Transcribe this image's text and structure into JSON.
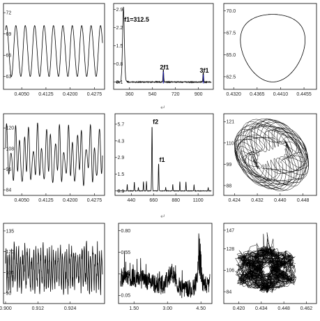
{
  "figure": {
    "separator_glyph": "↵"
  },
  "chart_data": [
    {
      "id": "r1c1",
      "type": "line",
      "kind": "periodic",
      "x_ticks": [
        "0.4050",
        "0.4125",
        "0.4200",
        "0.4275"
      ],
      "y_ticks": [
        "63",
        "66",
        "69",
        "72"
      ],
      "xlim": [
        0.4,
        0.43
      ],
      "ylim": [
        61.5,
        73
      ],
      "signal": {
        "center": 66.6,
        "amplitude": 3.4,
        "cycles": 10.3
      }
    },
    {
      "id": "r1c2",
      "type": "line",
      "kind": "spectrum",
      "x_ticks": [
        "360",
        "540",
        "720",
        "900"
      ],
      "y_ticks": [
        "0.1",
        "0.8",
        "1.5",
        "2.2",
        "2.9"
      ],
      "xlim": [
        252,
        1000
      ],
      "ylim": [
        -0.1,
        3.05
      ],
      "peaks": [
        {
          "x": 312.5,
          "y": 2.35,
          "label": "f1=312.5",
          "color": "#000000"
        },
        {
          "x": 625,
          "y": 0.5,
          "label": "2f1",
          "color": "#1a1aa8"
        },
        {
          "x": 937.5,
          "y": 0.38,
          "label": "3f1",
          "color": "#1a1aa8"
        }
      ]
    },
    {
      "id": "r1c3",
      "type": "line",
      "kind": "phase-portrait",
      "x_ticks": [
        "0.4320",
        "0.4365",
        "0.4410",
        "0.4455"
      ],
      "y_ticks": [
        "62.5",
        "65.0",
        "67.5",
        "70.0"
      ],
      "xlim": [
        0.4305,
        0.4475
      ],
      "ylim": [
        61.3,
        70.6
      ]
    },
    {
      "id": "r2c1",
      "type": "line",
      "kind": "quasi-periodic",
      "x_ticks": [
        "0.4050",
        "0.4125",
        "0.4200",
        "0.4275"
      ],
      "y_ticks": [
        "84",
        "96",
        "108",
        "120"
      ],
      "xlim": [
        0.4,
        0.43
      ],
      "ylim": [
        82,
        127
      ]
    },
    {
      "id": "r2c2",
      "type": "line",
      "kind": "spectrum",
      "x_ticks": [
        "440",
        "660",
        "880",
        "1100"
      ],
      "y_ticks": [
        "0.1",
        "1.5",
        "2.9",
        "4.3",
        "5.7"
      ],
      "xlim": [
        300,
        1230
      ],
      "ylim": [
        -0.1,
        6.4
      ],
      "peaks": [
        {
          "x": 645,
          "y": 5.55,
          "label": "f2",
          "color": "#000000"
        },
        {
          "x": 710,
          "y": 2.35,
          "label": "f1",
          "color": "#000000"
        }
      ]
    },
    {
      "id": "r2c3",
      "type": "line",
      "kind": "torus-portrait",
      "x_ticks": [
        "0.424",
        "0.432",
        "0.440",
        "0.448"
      ],
      "y_ticks": [
        "88",
        "99",
        "110",
        "121"
      ],
      "xlim": [
        0.421,
        0.452
      ],
      "ylim": [
        84,
        124
      ]
    },
    {
      "id": "r3c1",
      "type": "line",
      "kind": "chaotic",
      "x_ticks": [
        "0.900",
        "0.912",
        "0.924"
      ],
      "y_ticks": [
        "90",
        "105",
        "120",
        "135"
      ],
      "xlim": [
        0.9,
        0.936
      ],
      "ylim": [
        84,
        139
      ]
    },
    {
      "id": "r3c2",
      "type": "line",
      "kind": "broadband-spectrum",
      "x_ticks": [
        "1.50",
        "3.00",
        "4.50"
      ],
      "y_ticks": [
        "0.05",
        "0.30",
        "0.55",
        "0.80"
      ],
      "xlim": [
        0.9,
        4.9
      ],
      "ylim": [
        -0.02,
        0.86
      ]
    },
    {
      "id": "r3c3",
      "type": "line",
      "kind": "strange-attractor",
      "x_ticks": [
        "0.420",
        "0.434",
        "0.448",
        "0.462"
      ],
      "y_ticks": [
        "84",
        "106",
        "128",
        "147"
      ],
      "xlim": [
        0.412,
        0.467
      ],
      "ylim": [
        74,
        152
      ]
    }
  ]
}
